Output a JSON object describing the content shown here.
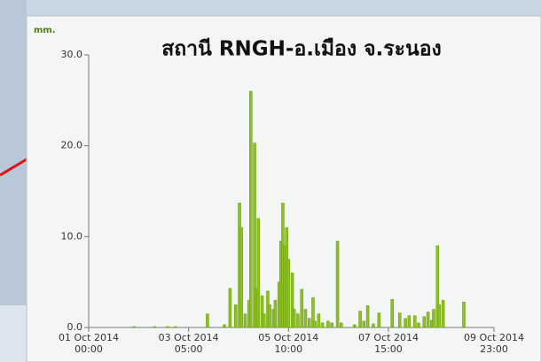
{
  "chart_data": {
    "type": "bar",
    "title": "สถานี RNGH-อ.เมือง จ.ระนอง",
    "y_unit": "mm.",
    "color": "#8dc021",
    "x": [
      24,
      35,
      42,
      46,
      63,
      72,
      75,
      78,
      80,
      81,
      83,
      85,
      86,
      88,
      89,
      90,
      92,
      93,
      95,
      96,
      98,
      99,
      101,
      102,
      103,
      104,
      105,
      106,
      108,
      109,
      111,
      113,
      115,
      117,
      119,
      120,
      122,
      124,
      127,
      129,
      132,
      134,
      141,
      144,
      146,
      148,
      151,
      154,
      161,
      165,
      168,
      170,
      173,
      175,
      178,
      180,
      182,
      183,
      185,
      186,
      188,
      199
    ],
    "values": [
      0.1,
      0.1,
      0.1,
      0.1,
      1.5,
      0.3,
      4.3,
      2.5,
      13.7,
      11,
      1.5,
      3,
      26,
      20.3,
      4.3,
      12,
      3.5,
      1.5,
      4,
      2.5,
      2,
      3,
      5,
      9.5,
      13.7,
      9,
      11,
      7.5,
      6,
      2,
      1.5,
      4.2,
      2,
      1,
      3.3,
      0.7,
      1.5,
      0.5,
      0.7,
      0.5,
      9.5,
      0.5,
      0.3,
      1.8,
      0.7,
      2.4,
      0.4,
      1.6,
      3.1,
      1.6,
      1,
      1.3,
      1.3,
      0.5,
      1.2,
      1.7,
      0.8,
      2,
      9,
      2.5,
      3,
      2.8
    ],
    "xlim": [
      0,
      215
    ],
    "xticks": [
      {
        "value": 0,
        "label": "01 Oct 2014 00:00"
      },
      {
        "value": 53,
        "label": "03 Oct 2014 05:00"
      },
      {
        "value": 106,
        "label": "05 Oct 2014 10:00"
      },
      {
        "value": 159,
        "label": "07 Oct 2014 15:00"
      },
      {
        "value": 215,
        "label": "09 Oct 2014 23:00"
      }
    ],
    "ylim": [
      0,
      30
    ],
    "yticks": [
      {
        "value": 0,
        "label": "0.0"
      },
      {
        "value": 10,
        "label": "10.0"
      },
      {
        "value": 20,
        "label": "20.0"
      },
      {
        "value": 30,
        "label": "30.0"
      }
    ]
  }
}
